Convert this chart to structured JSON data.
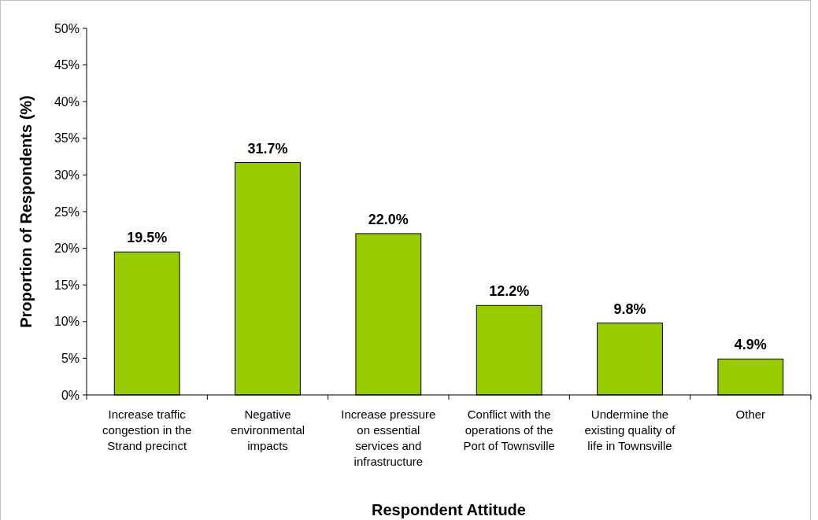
{
  "chart_data": {
    "type": "bar",
    "xlabel": "Respondent Attitude",
    "ylabel": "Proportion of Respondents (%)",
    "categories": [
      "Increase traffic congestion in the Strand precinct",
      "Negative environmental impacts",
      "Increase pressure on essential services and infrastructure",
      "Conflict with the operations of the Port of Townsville",
      "Undermine the existing quality of life in Townsville",
      "Other"
    ],
    "values": [
      19.5,
      31.7,
      22.0,
      12.2,
      9.8,
      4.9
    ],
    "value_labels": [
      "19.5%",
      "31.7%",
      "22.0%",
      "12.2%",
      "9.8%",
      "4.9%"
    ],
    "color": "#99cc00",
    "ylim": [
      0,
      50
    ],
    "yticks": [
      {
        "value": 0,
        "label": "0%"
      },
      {
        "value": 5,
        "label": "5%"
      },
      {
        "value": 10,
        "label": "10%"
      },
      {
        "value": 15,
        "label": "15%"
      },
      {
        "value": 20,
        "label": "20%"
      },
      {
        "value": 25,
        "label": "25%"
      },
      {
        "value": 30,
        "label": "30%"
      },
      {
        "value": 35,
        "label": "35%"
      },
      {
        "value": 40,
        "label": "40%"
      },
      {
        "value": 45,
        "label": "45%"
      },
      {
        "value": 50,
        "label": "50%"
      }
    ],
    "grid": false
  }
}
